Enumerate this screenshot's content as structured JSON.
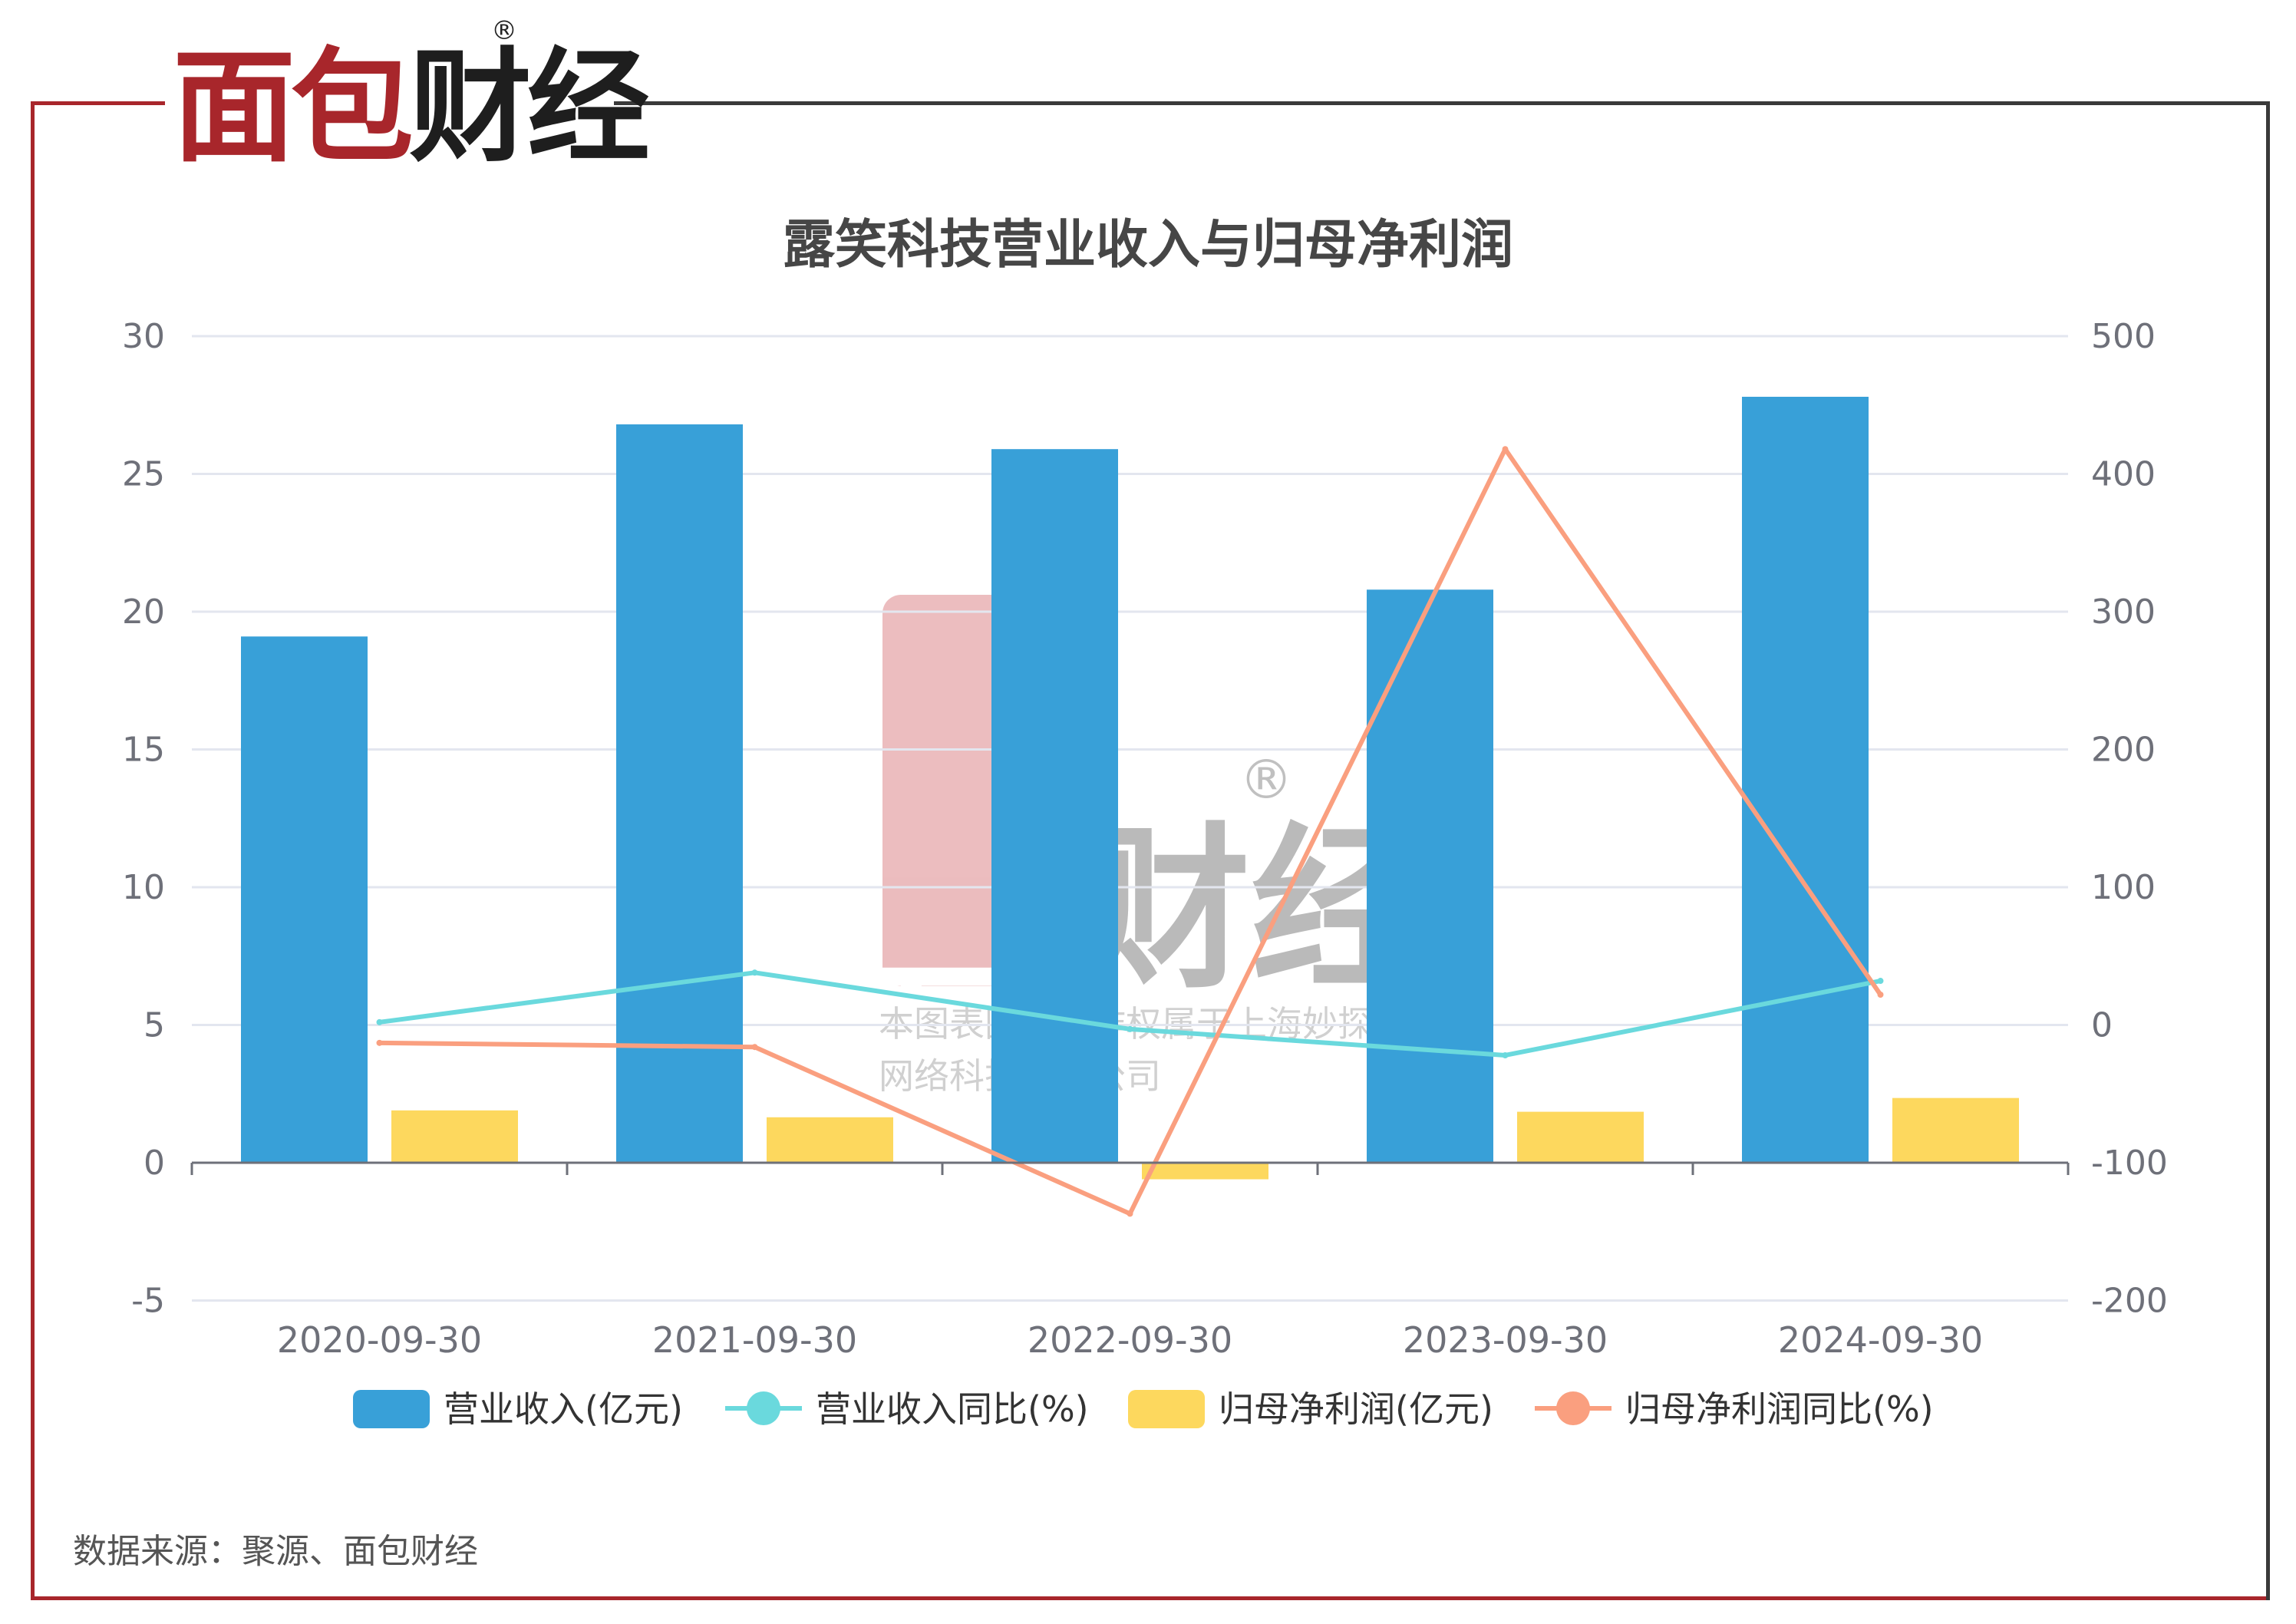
{
  "logo": {
    "part1": "面包",
    "part2": "财经",
    "registered": "®"
  },
  "watermark": {
    "logo_red": "面包",
    "logo_dark": "财经",
    "registered": "®",
    "line1": "本图表图片著作权属于上海妙探",
    "line2": "网络科技有限公司"
  },
  "source": "数据来源：聚源、面包财经",
  "colors": {
    "brand_red": "#a8262b",
    "revenue": "#38a0d8",
    "revenue_yoy": "#6ad9dd",
    "profit": "#fdd85e",
    "profit_yoy": "#fa9f7f"
  },
  "chart_data": {
    "type": "bar",
    "title": "露笑科技营业收入与归母净利润",
    "categories": [
      "2020-09-30",
      "2021-09-30",
      "2022-09-30",
      "2023-09-30",
      "2024-09-30"
    ],
    "y_left": {
      "min": -5,
      "max": 30,
      "ticks": [
        "-5",
        "0",
        "5",
        "10",
        "15",
        "20",
        "25",
        "30"
      ]
    },
    "y_right": {
      "min": -200,
      "max": 500,
      "ticks": [
        "-200",
        "-100",
        "0",
        "100",
        "200",
        "300",
        "400",
        "500"
      ]
    },
    "grid": true,
    "legend_position": "bottom",
    "series": [
      {
        "name": "营业收入(亿元)",
        "type": "bar",
        "axis": "left",
        "values": [
          19.1,
          26.8,
          25.9,
          20.8,
          27.8
        ]
      },
      {
        "name": "营业收入同比(%)",
        "type": "line",
        "axis": "right",
        "values": [
          2,
          38,
          -3,
          -22,
          32
        ]
      },
      {
        "name": "归母净利润(亿元)",
        "type": "bar",
        "axis": "left",
        "values": [
          1.9,
          1.65,
          -0.6,
          1.85,
          2.35
        ]
      },
      {
        "name": "归母净利润同比(%)",
        "type": "line",
        "axis": "right",
        "values": [
          -13,
          -16,
          -137,
          418,
          22
        ]
      }
    ]
  }
}
